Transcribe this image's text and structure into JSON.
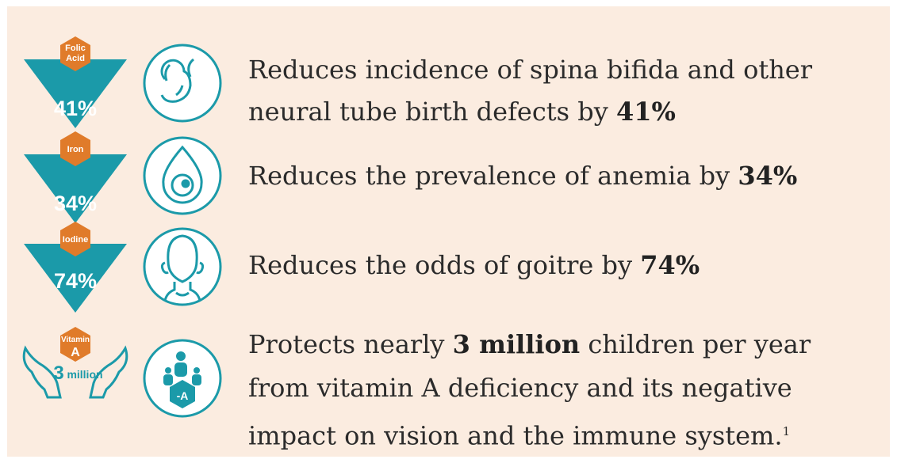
{
  "items": [
    {
      "nutrient": [
        "Folic",
        "Acid"
      ],
      "badge": [
        "41%"
      ],
      "lines": [
        {
          "text": "Reduces incidence of spina bifida and other"
        },
        {
          "text": "neural tube birth defects by ",
          "strong": "41%"
        }
      ]
    },
    {
      "nutrient": [
        "Iron"
      ],
      "badge": [
        "34%"
      ],
      "lines": [
        {
          "text": "Reduces the prevalence of anemia by ",
          "strong": "34%"
        }
      ]
    },
    {
      "nutrient": [
        "Iodine"
      ],
      "badge": [
        "74%"
      ],
      "lines": [
        {
          "text": "Reduces the odds of goitre by ",
          "strong": "74%"
        }
      ]
    },
    {
      "nutrient": [
        "Vitamin",
        "A"
      ],
      "badge": [
        "3",
        "million"
      ],
      "icon_label": "-A",
      "lines": [
        {
          "text": "Protects nearly ",
          "strong": "3 million",
          "after": " children per year"
        },
        {
          "text": "from vitamin A deficiency and its negative"
        },
        {
          "text": "impact on vision and the immune system.",
          "sup": "1"
        }
      ]
    }
  ]
}
